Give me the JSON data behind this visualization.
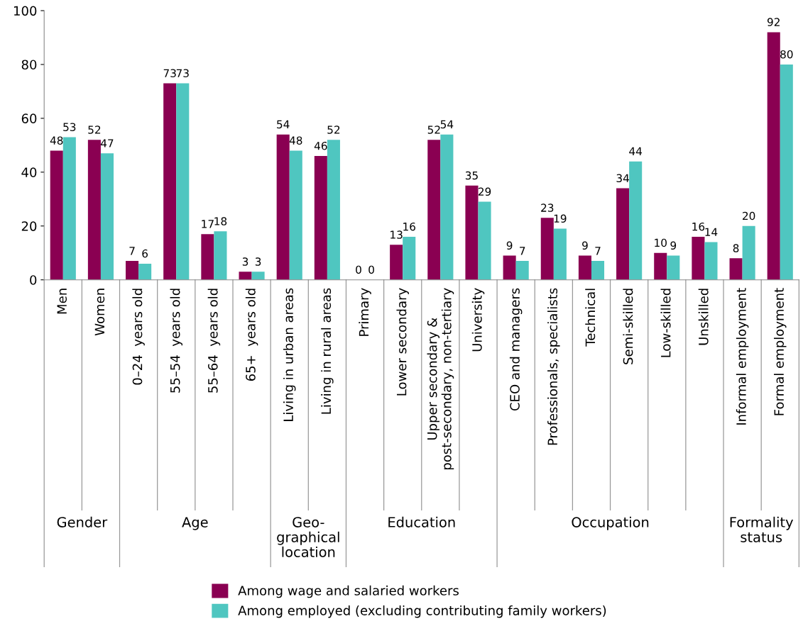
{
  "chart_data": {
    "type": "bar",
    "categories": [
      "Men",
      "Women",
      "0–24  years old",
      "55–54  years old",
      "55–64  years old",
      "65+  years old",
      "Living in urban areas",
      "Living in rural areas",
      "Primary",
      "Lower secondary",
      "Upper secondary &\npost-secondary, non-tertiary",
      "University",
      "CEO and managers",
      "Professionals, specialists",
      "Technical",
      "Semi-skilled",
      "Low-skilled",
      "Unskilled",
      "Informal employment",
      "Formal employment"
    ],
    "series": [
      {
        "name": "Among wage and salaried workers",
        "color": "#8a0052",
        "values": [
          48,
          52,
          7,
          73,
          17,
          3,
          54,
          46,
          0,
          13,
          52,
          35,
          9,
          23,
          9,
          34,
          10,
          16,
          8,
          92
        ]
      },
      {
        "name": "Among employed (excluding contributing family workers)",
        "color": "#4fc6c0",
        "values": [
          53,
          47,
          6,
          73,
          18,
          3,
          48,
          52,
          0,
          16,
          54,
          29,
          7,
          19,
          7,
          44,
          9,
          14,
          20,
          80
        ]
      }
    ],
    "annotations": [
      "Gender",
      "Age",
      "Geo-\ngraphical\nlocation",
      "Education",
      "Occupation",
      "Formality\nstatus"
    ],
    "ylim": [
      0,
      100
    ],
    "yticks": [
      0,
      20,
      40,
      60,
      80,
      100
    ],
    "data_labels": true,
    "grid": false,
    "legend": "bottom"
  }
}
